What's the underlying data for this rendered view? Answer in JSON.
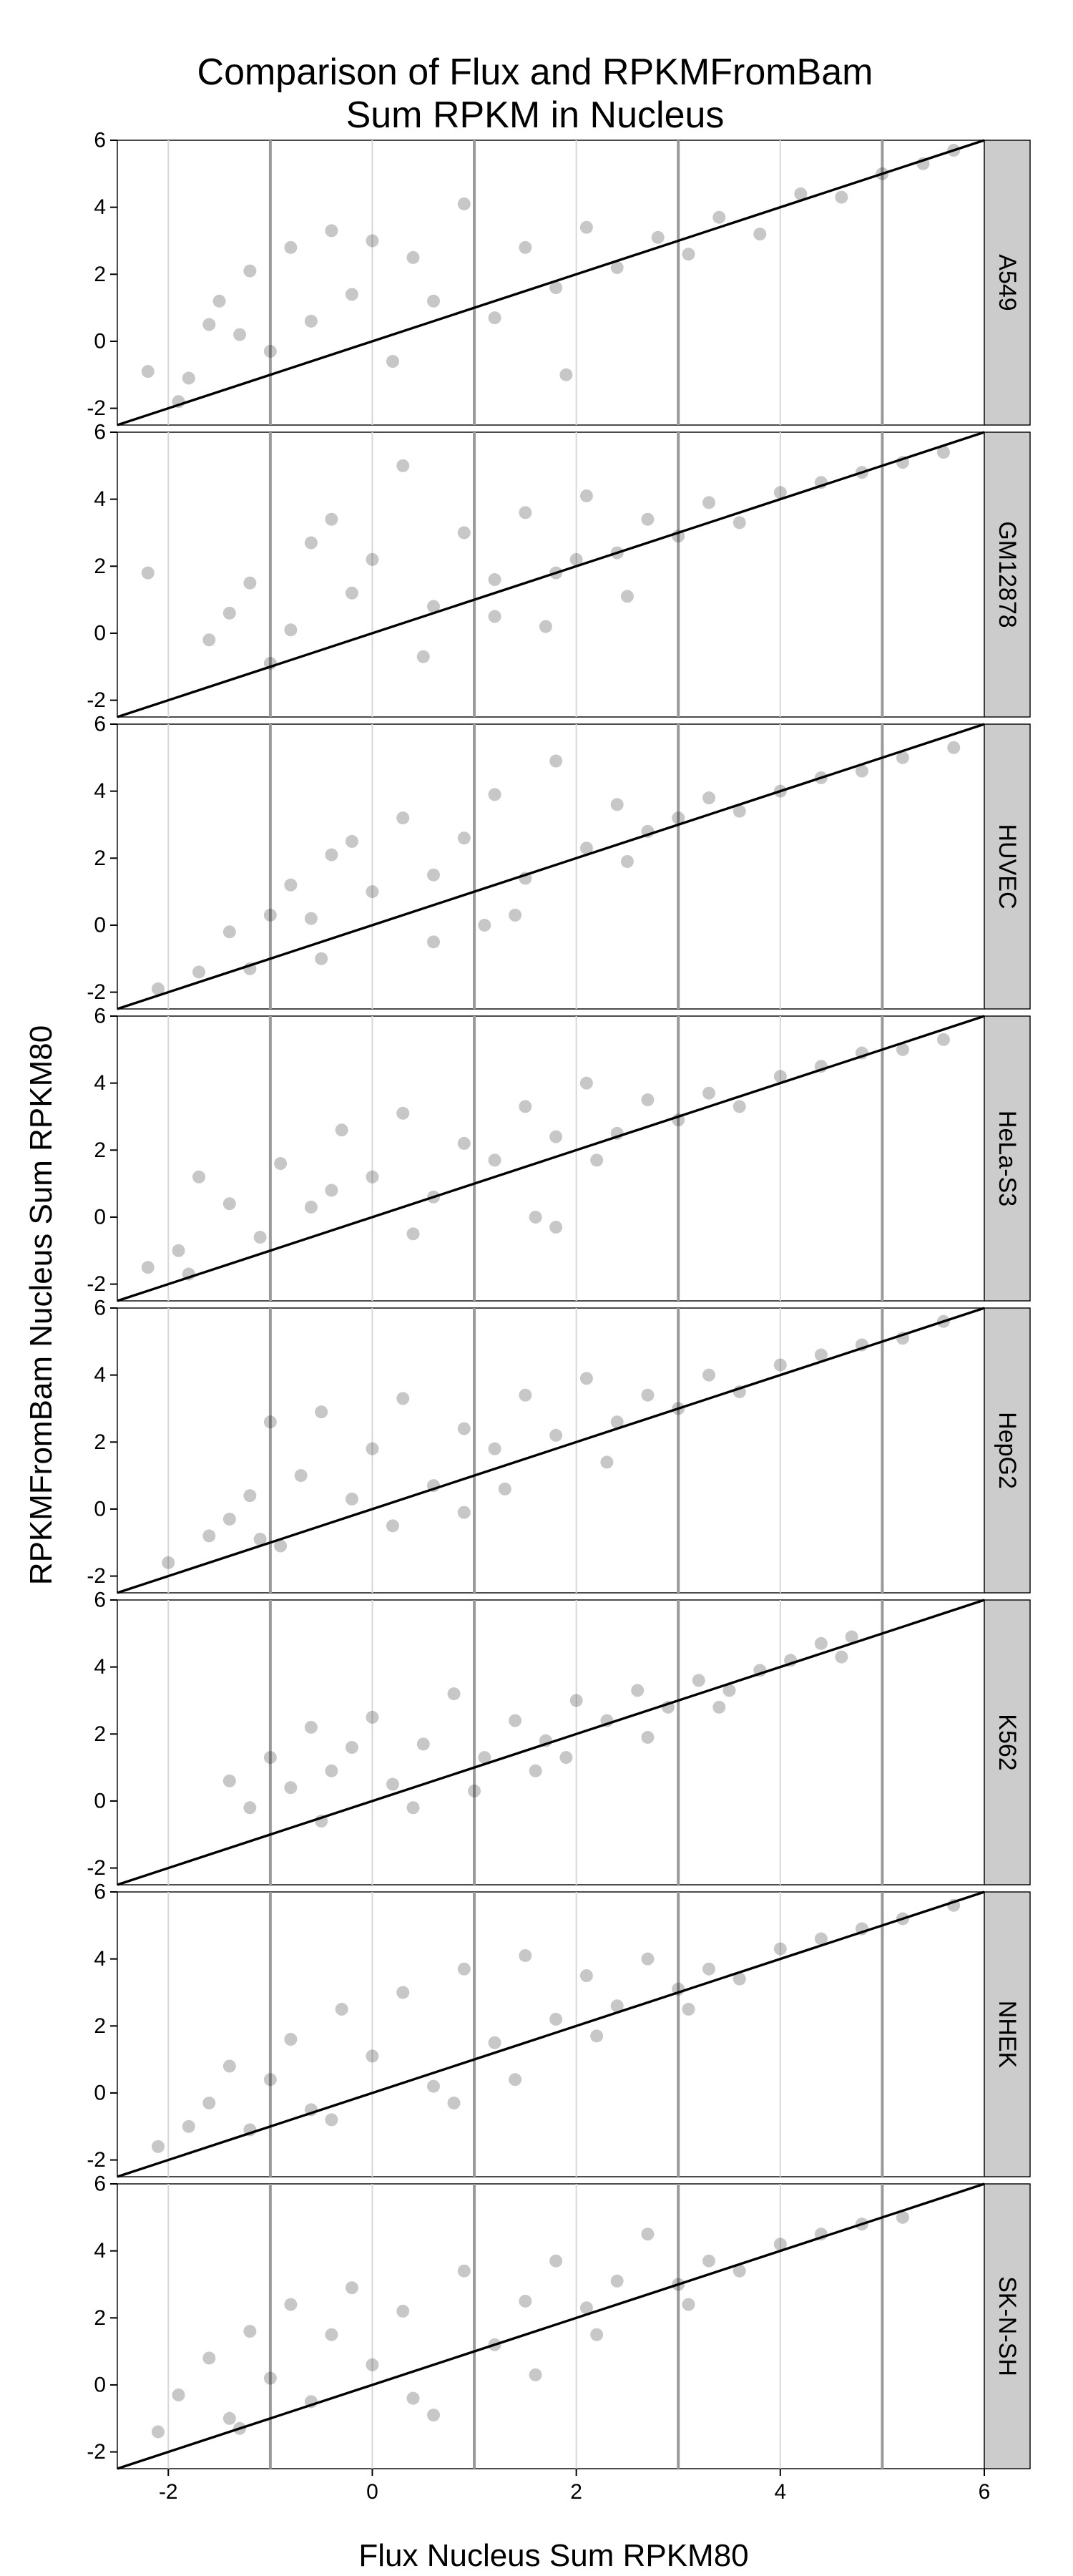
{
  "chart_data": {
    "type": "scatter",
    "title": "Comparison of Flux and RPKMFromBam",
    "subtitle": "Sum RPKM in Nucleus",
    "xlabel": "Flux Nucleus Sum RPKM80",
    "ylabel": "RPKMFromBam  Nucleus Sum RPKM80",
    "xlim": [
      -2.5,
      6
    ],
    "ylim": [
      -2.5,
      6
    ],
    "x_ticks": [
      -2,
      0,
      2,
      4,
      6
    ],
    "y_ticks": [
      -2,
      0,
      2,
      4,
      6
    ],
    "x_tick_labels": [
      "-2",
      "0",
      "2",
      "4",
      "6"
    ],
    "y_tick_labels": [
      "-2",
      "0",
      "2",
      "4",
      "6"
    ],
    "vertical_reference_lines": [
      -1,
      1,
      3,
      5
    ],
    "grid": true,
    "reference_line": {
      "kind": "identity",
      "slope": 1,
      "intercept": 0
    },
    "point_color": "#000000",
    "point_opacity": 0.22,
    "strip_color": "#cccccc",
    "facets": [
      {
        "label": "A549",
        "points": [
          [
            -2.2,
            -0.9
          ],
          [
            -1.9,
            -1.8
          ],
          [
            -1.8,
            -1.1
          ],
          [
            -1.6,
            0.5
          ],
          [
            -1.5,
            1.2
          ],
          [
            -1.3,
            0.2
          ],
          [
            -1.2,
            2.1
          ],
          [
            -1.0,
            -0.3
          ],
          [
            -0.8,
            2.8
          ],
          [
            -0.6,
            0.6
          ],
          [
            -0.4,
            3.3
          ],
          [
            -0.2,
            1.4
          ],
          [
            0.0,
            3.0
          ],
          [
            0.2,
            -0.6
          ],
          [
            0.4,
            2.5
          ],
          [
            0.6,
            1.2
          ],
          [
            0.9,
            4.1
          ],
          [
            1.2,
            0.7
          ],
          [
            1.5,
            2.8
          ],
          [
            1.8,
            1.6
          ],
          [
            2.1,
            3.4
          ],
          [
            2.4,
            2.2
          ],
          [
            2.8,
            3.1
          ],
          [
            3.1,
            2.6
          ],
          [
            3.4,
            3.7
          ],
          [
            3.8,
            3.2
          ],
          [
            4.2,
            4.4
          ],
          [
            4.6,
            4.3
          ],
          [
            5.0,
            5.0
          ],
          [
            5.4,
            5.3
          ],
          [
            5.7,
            5.7
          ],
          [
            1.9,
            -1.0
          ]
        ]
      },
      {
        "label": "GM12878",
        "points": [
          [
            -2.2,
            1.8
          ],
          [
            -1.6,
            -0.2
          ],
          [
            -1.4,
            0.6
          ],
          [
            -1.2,
            1.5
          ],
          [
            -1.0,
            -0.9
          ],
          [
            -0.8,
            0.1
          ],
          [
            -0.6,
            2.7
          ],
          [
            -0.4,
            3.4
          ],
          [
            -0.2,
            1.2
          ],
          [
            0.0,
            2.2
          ],
          [
            0.3,
            5.0
          ],
          [
            0.6,
            0.8
          ],
          [
            0.9,
            3.0
          ],
          [
            1.2,
            1.6
          ],
          [
            1.5,
            3.6
          ],
          [
            1.8,
            1.8
          ],
          [
            2.1,
            4.1
          ],
          [
            2.4,
            2.4
          ],
          [
            2.7,
            3.4
          ],
          [
            3.0,
            2.9
          ],
          [
            3.3,
            3.9
          ],
          [
            3.6,
            3.3
          ],
          [
            4.0,
            4.2
          ],
          [
            4.4,
            4.5
          ],
          [
            4.8,
            4.8
          ],
          [
            5.2,
            5.1
          ],
          [
            5.6,
            5.4
          ],
          [
            1.7,
            0.2
          ],
          [
            2.5,
            1.1
          ],
          [
            0.5,
            -0.7
          ],
          [
            2.0,
            2.2
          ],
          [
            1.2,
            0.5
          ]
        ]
      },
      {
        "label": "HUVEC",
        "points": [
          [
            -2.1,
            -1.9
          ],
          [
            -1.7,
            -1.4
          ],
          [
            -1.4,
            -0.2
          ],
          [
            -1.2,
            -1.3
          ],
          [
            -1.0,
            0.3
          ],
          [
            -0.8,
            1.2
          ],
          [
            -0.6,
            0.2
          ],
          [
            -0.4,
            2.1
          ],
          [
            -0.2,
            2.5
          ],
          [
            0.0,
            1.0
          ],
          [
            0.3,
            3.2
          ],
          [
            0.6,
            -0.5
          ],
          [
            0.9,
            2.6
          ],
          [
            1.2,
            3.9
          ],
          [
            1.5,
            1.4
          ],
          [
            1.8,
            4.9
          ],
          [
            2.1,
            2.3
          ],
          [
            2.4,
            3.6
          ],
          [
            2.7,
            2.8
          ],
          [
            3.0,
            3.2
          ],
          [
            3.3,
            3.8
          ],
          [
            3.6,
            3.4
          ],
          [
            4.0,
            4.0
          ],
          [
            4.4,
            4.4
          ],
          [
            4.8,
            4.6
          ],
          [
            5.2,
            5.0
          ],
          [
            5.7,
            5.3
          ],
          [
            1.1,
            0.0
          ],
          [
            1.4,
            0.3
          ],
          [
            -0.5,
            -1.0
          ],
          [
            0.6,
            1.5
          ],
          [
            2.5,
            1.9
          ]
        ]
      },
      {
        "label": "HeLa-S3",
        "points": [
          [
            -2.2,
            -1.5
          ],
          [
            -1.9,
            -1.0
          ],
          [
            -1.8,
            -1.7
          ],
          [
            -1.7,
            1.2
          ],
          [
            -1.4,
            0.4
          ],
          [
            -1.1,
            -0.6
          ],
          [
            -0.9,
            1.6
          ],
          [
            -0.6,
            0.3
          ],
          [
            -0.3,
            2.6
          ],
          [
            0.0,
            1.2
          ],
          [
            0.3,
            3.1
          ],
          [
            0.6,
            0.6
          ],
          [
            0.9,
            2.2
          ],
          [
            1.2,
            1.7
          ],
          [
            1.5,
            3.3
          ],
          [
            1.8,
            2.4
          ],
          [
            2.1,
            4.0
          ],
          [
            2.4,
            2.5
          ],
          [
            2.7,
            3.5
          ],
          [
            3.0,
            2.9
          ],
          [
            3.3,
            3.7
          ],
          [
            3.6,
            3.3
          ],
          [
            4.0,
            4.2
          ],
          [
            4.4,
            4.5
          ],
          [
            4.8,
            4.9
          ],
          [
            5.2,
            5.0
          ],
          [
            5.6,
            5.3
          ],
          [
            1.6,
            0.0
          ],
          [
            1.8,
            -0.3
          ],
          [
            0.4,
            -0.5
          ],
          [
            2.2,
            1.7
          ],
          [
            -0.4,
            0.8
          ]
        ]
      },
      {
        "label": "HepG2",
        "points": [
          [
            -2.0,
            -1.6
          ],
          [
            -1.6,
            -0.8
          ],
          [
            -1.4,
            -0.3
          ],
          [
            -1.2,
            0.4
          ],
          [
            -1.0,
            2.6
          ],
          [
            -0.9,
            -1.1
          ],
          [
            -0.7,
            1.0
          ],
          [
            -0.5,
            2.9
          ],
          [
            -0.2,
            0.3
          ],
          [
            0.0,
            1.8
          ],
          [
            0.3,
            3.3
          ],
          [
            0.6,
            0.7
          ],
          [
            0.9,
            2.4
          ],
          [
            1.2,
            1.8
          ],
          [
            1.5,
            3.4
          ],
          [
            1.8,
            2.2
          ],
          [
            2.1,
            3.9
          ],
          [
            2.4,
            2.6
          ],
          [
            2.7,
            3.4
          ],
          [
            3.0,
            3.0
          ],
          [
            3.3,
            4.0
          ],
          [
            3.6,
            3.5
          ],
          [
            4.0,
            4.3
          ],
          [
            4.4,
            4.6
          ],
          [
            4.8,
            4.9
          ],
          [
            5.2,
            5.1
          ],
          [
            5.6,
            5.6
          ],
          [
            0.9,
            -0.1
          ],
          [
            2.3,
            1.4
          ],
          [
            1.3,
            0.6
          ],
          [
            0.2,
            -0.5
          ],
          [
            -1.1,
            -0.9
          ]
        ]
      },
      {
        "label": "K562",
        "points": [
          [
            -1.4,
            0.6
          ],
          [
            -1.2,
            -0.2
          ],
          [
            -1.0,
            1.3
          ],
          [
            -0.8,
            0.4
          ],
          [
            -0.6,
            2.2
          ],
          [
            -0.5,
            -0.6
          ],
          [
            -0.2,
            1.6
          ],
          [
            0.0,
            2.5
          ],
          [
            0.2,
            0.5
          ],
          [
            0.5,
            1.7
          ],
          [
            0.8,
            3.2
          ],
          [
            1.1,
            1.3
          ],
          [
            1.4,
            2.4
          ],
          [
            1.7,
            1.8
          ],
          [
            2.0,
            3.0
          ],
          [
            2.3,
            2.4
          ],
          [
            2.6,
            3.3
          ],
          [
            2.9,
            2.8
          ],
          [
            3.2,
            3.6
          ],
          [
            3.5,
            3.3
          ],
          [
            3.8,
            3.9
          ],
          [
            4.1,
            4.2
          ],
          [
            4.4,
            4.7
          ],
          [
            4.7,
            4.9
          ],
          [
            1.0,
            0.3
          ],
          [
            1.6,
            0.9
          ],
          [
            0.4,
            -0.2
          ],
          [
            2.7,
            1.9
          ],
          [
            -0.4,
            0.9
          ],
          [
            3.4,
            2.8
          ],
          [
            4.6,
            4.3
          ],
          [
            1.9,
            1.3
          ]
        ]
      },
      {
        "label": "NHEK",
        "points": [
          [
            -2.1,
            -1.6
          ],
          [
            -1.8,
            -1.0
          ],
          [
            -1.6,
            -0.3
          ],
          [
            -1.4,
            0.8
          ],
          [
            -1.2,
            -1.1
          ],
          [
            -1.0,
            0.4
          ],
          [
            -0.8,
            1.6
          ],
          [
            -0.6,
            -0.5
          ],
          [
            -0.3,
            2.5
          ],
          [
            0.0,
            1.1
          ],
          [
            0.3,
            3.0
          ],
          [
            0.6,
            0.2
          ],
          [
            0.9,
            3.7
          ],
          [
            1.2,
            1.5
          ],
          [
            1.5,
            4.1
          ],
          [
            1.8,
            2.2
          ],
          [
            2.1,
            3.5
          ],
          [
            2.4,
            2.6
          ],
          [
            2.7,
            4.0
          ],
          [
            3.0,
            3.1
          ],
          [
            3.3,
            3.7
          ],
          [
            3.6,
            3.4
          ],
          [
            4.0,
            4.3
          ],
          [
            4.4,
            4.6
          ],
          [
            4.8,
            4.9
          ],
          [
            5.2,
            5.2
          ],
          [
            5.7,
            5.6
          ],
          [
            0.8,
            -0.3
          ],
          [
            1.4,
            0.4
          ],
          [
            2.2,
            1.7
          ],
          [
            3.1,
            2.5
          ],
          [
            -0.4,
            -0.8
          ]
        ]
      },
      {
        "label": "SK-N-SH",
        "points": [
          [
            -2.1,
            -1.4
          ],
          [
            -1.9,
            -0.3
          ],
          [
            -1.6,
            0.8
          ],
          [
            -1.4,
            -1.0
          ],
          [
            -1.2,
            1.6
          ],
          [
            -1.0,
            0.2
          ],
          [
            -0.8,
            2.4
          ],
          [
            -0.6,
            -0.5
          ],
          [
            -0.4,
            1.5
          ],
          [
            -0.2,
            2.9
          ],
          [
            0.0,
            0.6
          ],
          [
            0.3,
            2.2
          ],
          [
            0.6,
            -0.9
          ],
          [
            0.9,
            3.4
          ],
          [
            1.2,
            1.2
          ],
          [
            1.5,
            2.5
          ],
          [
            1.8,
            3.7
          ],
          [
            2.1,
            2.3
          ],
          [
            2.4,
            3.1
          ],
          [
            2.7,
            4.5
          ],
          [
            3.0,
            3.0
          ],
          [
            3.3,
            3.7
          ],
          [
            3.6,
            3.4
          ],
          [
            4.0,
            4.2
          ],
          [
            4.4,
            4.5
          ],
          [
            4.8,
            4.8
          ],
          [
            5.2,
            5.0
          ],
          [
            1.6,
            0.3
          ],
          [
            2.2,
            1.5
          ],
          [
            0.4,
            -0.4
          ],
          [
            3.1,
            2.4
          ],
          [
            -1.3,
            -1.3
          ]
        ]
      }
    ]
  }
}
